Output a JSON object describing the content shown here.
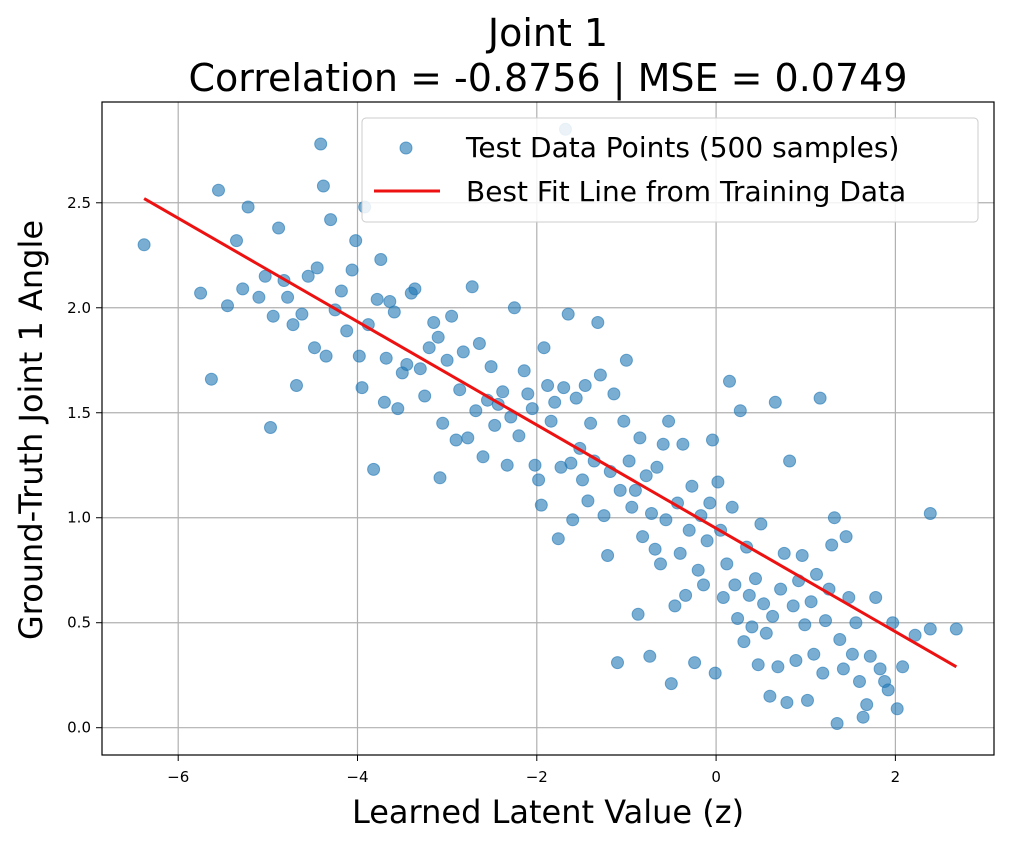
{
  "colors": {
    "scatter": "#1f77b4",
    "fit_line": "#ee1111",
    "grid": "#b0b0b0",
    "axes": "#000000",
    "background": "#ffffff"
  },
  "chart_data": {
    "type": "scatter",
    "title": "Joint 1",
    "subtitle": "Correlation = -0.8756 | MSE = 0.0749",
    "xlabel": "Learned Latent Value (z)",
    "ylabel": "Ground-Truth Joint 1 Angle",
    "xlim": [
      -6.85,
      3.1
    ],
    "ylim": [
      -0.13,
      2.98
    ],
    "xticks": [
      -6,
      -4,
      -2,
      0,
      2
    ],
    "xtick_labels": [
      "−6",
      "−4",
      "−2",
      "0",
      "2"
    ],
    "yticks": [
      0.0,
      0.5,
      1.0,
      1.5,
      2.0,
      2.5
    ],
    "ytick_labels": [
      "0.0",
      "0.5",
      "1.0",
      "1.5",
      "2.0",
      "2.5"
    ],
    "grid": true,
    "legend_position": "top-right",
    "series": [
      {
        "name": "Test Data Points (500 samples)",
        "kind": "scatter",
        "color": "#1f77b4",
        "alpha": 0.6,
        "points": [
          [
            -6.38,
            2.3
          ],
          [
            -5.75,
            2.07
          ],
          [
            -5.63,
            1.66
          ],
          [
            -5.55,
            2.56
          ],
          [
            -5.45,
            2.01
          ],
          [
            -5.35,
            2.32
          ],
          [
            -5.28,
            2.09
          ],
          [
            -5.22,
            2.48
          ],
          [
            -5.1,
            2.05
          ],
          [
            -5.03,
            2.15
          ],
          [
            -4.97,
            1.43
          ],
          [
            -4.94,
            1.96
          ],
          [
            -4.88,
            2.38
          ],
          [
            -4.82,
            2.13
          ],
          [
            -4.78,
            2.05
          ],
          [
            -4.72,
            1.92
          ],
          [
            -4.68,
            1.63
          ],
          [
            -4.62,
            1.97
          ],
          [
            -4.55,
            2.15
          ],
          [
            -4.48,
            1.81
          ],
          [
            -4.45,
            2.19
          ],
          [
            -4.41,
            2.78
          ],
          [
            -4.38,
            2.58
          ],
          [
            -4.35,
            1.77
          ],
          [
            -4.3,
            2.42
          ],
          [
            -4.25,
            1.99
          ],
          [
            -4.18,
            2.08
          ],
          [
            -4.12,
            1.89
          ],
          [
            -4.06,
            2.18
          ],
          [
            -4.02,
            2.32
          ],
          [
            -3.98,
            1.77
          ],
          [
            -3.95,
            1.62
          ],
          [
            -3.92,
            2.48
          ],
          [
            -3.88,
            1.92
          ],
          [
            -3.82,
            1.23
          ],
          [
            -3.78,
            2.04
          ],
          [
            -3.74,
            2.23
          ],
          [
            -3.7,
            1.55
          ],
          [
            -3.68,
            1.76
          ],
          [
            -3.64,
            2.03
          ],
          [
            -3.59,
            1.98
          ],
          [
            -3.55,
            1.52
          ],
          [
            -3.5,
            1.69
          ],
          [
            -3.45,
            1.73
          ],
          [
            -3.4,
            2.07
          ],
          [
            -3.36,
            2.09
          ],
          [
            -3.3,
            1.71
          ],
          [
            -3.25,
            1.58
          ],
          [
            -3.2,
            1.81
          ],
          [
            -3.15,
            1.93
          ],
          [
            -3.1,
            1.86
          ],
          [
            -3.08,
            1.19
          ],
          [
            -3.05,
            1.45
          ],
          [
            -3.0,
            1.75
          ],
          [
            -2.95,
            1.96
          ],
          [
            -2.9,
            1.37
          ],
          [
            -2.86,
            1.61
          ],
          [
            -2.82,
            1.79
          ],
          [
            -2.77,
            1.38
          ],
          [
            -2.72,
            2.1
          ],
          [
            -2.68,
            1.51
          ],
          [
            -2.64,
            1.83
          ],
          [
            -2.6,
            1.29
          ],
          [
            -2.55,
            1.56
          ],
          [
            -2.51,
            1.72
          ],
          [
            -2.47,
            1.44
          ],
          [
            -2.43,
            1.54
          ],
          [
            -2.38,
            1.6
          ],
          [
            -2.33,
            1.25
          ],
          [
            -2.29,
            1.48
          ],
          [
            -2.25,
            2.0
          ],
          [
            -2.2,
            1.39
          ],
          [
            -2.14,
            1.7
          ],
          [
            -2.1,
            1.59
          ],
          [
            -2.05,
            1.52
          ],
          [
            -2.02,
            1.25
          ],
          [
            -1.98,
            1.18
          ],
          [
            -1.95,
            1.06
          ],
          [
            -1.92,
            1.81
          ],
          [
            -1.88,
            1.63
          ],
          [
            -1.84,
            1.46
          ],
          [
            -1.8,
            1.55
          ],
          [
            -1.76,
            0.9
          ],
          [
            -1.73,
            1.24
          ],
          [
            -1.7,
            1.62
          ],
          [
            -1.68,
            2.85
          ],
          [
            -1.65,
            1.97
          ],
          [
            -1.62,
            1.26
          ],
          [
            -1.6,
            0.99
          ],
          [
            -1.56,
            1.57
          ],
          [
            -1.52,
            1.33
          ],
          [
            -1.49,
            1.18
          ],
          [
            -1.46,
            1.63
          ],
          [
            -1.43,
            1.08
          ],
          [
            -1.4,
            1.45
          ],
          [
            -1.36,
            1.27
          ],
          [
            -1.32,
            1.93
          ],
          [
            -1.29,
            1.68
          ],
          [
            -1.25,
            1.01
          ],
          [
            -1.21,
            0.82
          ],
          [
            -1.18,
            1.22
          ],
          [
            -1.14,
            1.59
          ],
          [
            -1.1,
            0.31
          ],
          [
            -1.07,
            1.13
          ],
          [
            -1.03,
            1.46
          ],
          [
            -1.0,
            1.75
          ],
          [
            -0.97,
            1.27
          ],
          [
            -0.94,
            1.05
          ],
          [
            -0.9,
            1.13
          ],
          [
            -0.87,
            0.54
          ],
          [
            -0.85,
            1.38
          ],
          [
            -0.82,
            0.91
          ],
          [
            -0.78,
            1.2
          ],
          [
            -0.74,
            0.34
          ],
          [
            -0.72,
            1.02
          ],
          [
            -0.68,
            0.85
          ],
          [
            -0.66,
            1.24
          ],
          [
            -0.62,
            0.78
          ],
          [
            -0.59,
            1.35
          ],
          [
            -0.56,
            0.99
          ],
          [
            -0.53,
            1.46
          ],
          [
            -0.5,
            0.21
          ],
          [
            -0.46,
            0.58
          ],
          [
            -0.43,
            1.07
          ],
          [
            -0.4,
            0.83
          ],
          [
            -0.37,
            1.35
          ],
          [
            -0.34,
            0.63
          ],
          [
            -0.3,
            0.94
          ],
          [
            -0.27,
            1.15
          ],
          [
            -0.24,
            0.31
          ],
          [
            -0.2,
            0.75
          ],
          [
            -0.17,
            1.01
          ],
          [
            -0.14,
            0.68
          ],
          [
            -0.1,
            0.89
          ],
          [
            -0.07,
            1.07
          ],
          [
            -0.04,
            1.37
          ],
          [
            -0.01,
            0.26
          ],
          [
            0.02,
            1.17
          ],
          [
            0.05,
            0.94
          ],
          [
            0.08,
            0.62
          ],
          [
            0.12,
            0.78
          ],
          [
            0.15,
            1.65
          ],
          [
            0.18,
            1.05
          ],
          [
            0.21,
            0.68
          ],
          [
            0.24,
            0.52
          ],
          [
            0.27,
            1.51
          ],
          [
            0.31,
            0.41
          ],
          [
            0.34,
            0.86
          ],
          [
            0.37,
            0.63
          ],
          [
            0.4,
            0.48
          ],
          [
            0.44,
            0.71
          ],
          [
            0.47,
            0.3
          ],
          [
            0.5,
            0.97
          ],
          [
            0.53,
            0.59
          ],
          [
            0.56,
            0.45
          ],
          [
            0.6,
            0.15
          ],
          [
            0.63,
            0.53
          ],
          [
            0.66,
            1.55
          ],
          [
            0.69,
            0.29
          ],
          [
            0.72,
            0.66
          ],
          [
            0.76,
            0.83
          ],
          [
            0.79,
            0.12
          ],
          [
            0.82,
            1.27
          ],
          [
            0.86,
            0.58
          ],
          [
            0.89,
            0.32
          ],
          [
            0.92,
            0.7
          ],
          [
            0.96,
            0.82
          ],
          [
            0.99,
            0.49
          ],
          [
            1.02,
            0.13
          ],
          [
            1.06,
            0.6
          ],
          [
            1.09,
            0.35
          ],
          [
            1.12,
            0.73
          ],
          [
            1.16,
            1.57
          ],
          [
            1.19,
            0.26
          ],
          [
            1.22,
            0.51
          ],
          [
            1.26,
            0.66
          ],
          [
            1.29,
            0.87
          ],
          [
            1.32,
            1.0
          ],
          [
            1.35,
            0.02
          ],
          [
            1.38,
            0.42
          ],
          [
            1.42,
            0.28
          ],
          [
            1.45,
            0.91
          ],
          [
            1.48,
            0.62
          ],
          [
            1.52,
            0.35
          ],
          [
            1.56,
            0.5
          ],
          [
            1.6,
            0.22
          ],
          [
            1.64,
            0.05
          ],
          [
            1.68,
            0.11
          ],
          [
            1.72,
            0.34
          ],
          [
            1.78,
            0.62
          ],
          [
            1.83,
            0.28
          ],
          [
            1.88,
            0.22
          ],
          [
            1.92,
            0.18
          ],
          [
            1.97,
            0.5
          ],
          [
            2.02,
            0.09
          ],
          [
            2.08,
            0.29
          ],
          [
            2.22,
            0.44
          ],
          [
            2.39,
            1.02
          ],
          [
            2.39,
            0.47
          ],
          [
            2.68,
            0.47
          ]
        ]
      },
      {
        "name": "Best Fit Line from Training Data",
        "kind": "line",
        "color": "#ee1111",
        "x": [
          -6.38,
          2.68
        ],
        "y": [
          2.52,
          0.29
        ]
      }
    ]
  }
}
